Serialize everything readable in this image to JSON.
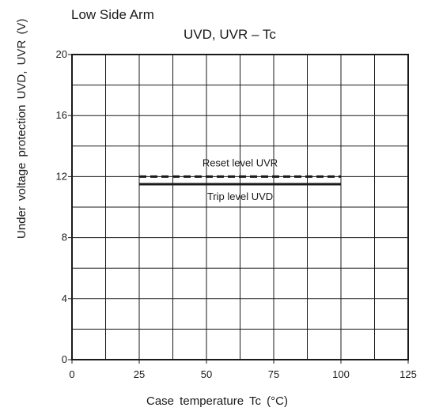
{
  "header": {
    "title": "Low Side Arm"
  },
  "chart_data": {
    "type": "line",
    "title": "UVD, UVR – Tc",
    "xlabel": "Case temperature   Tc   (°C)",
    "ylabel": "Under voltage protection   UVD, UVR   (V)",
    "xlim": [
      0,
      125
    ],
    "ylim": [
      0,
      20
    ],
    "x_ticks": [
      "0",
      "25",
      "50",
      "75",
      "100",
      "125"
    ],
    "y_ticks": [
      "0",
      "4",
      "8",
      "12",
      "16",
      "20"
    ],
    "grid": true,
    "series": [
      {
        "name": "Reset level UVR",
        "style": "dashed",
        "x": [
          25,
          100
        ],
        "values": [
          12.0,
          12.0
        ]
      },
      {
        "name": "Trip level UVD",
        "style": "solid",
        "x": [
          25,
          100
        ],
        "values": [
          11.5,
          11.5
        ]
      }
    ]
  }
}
